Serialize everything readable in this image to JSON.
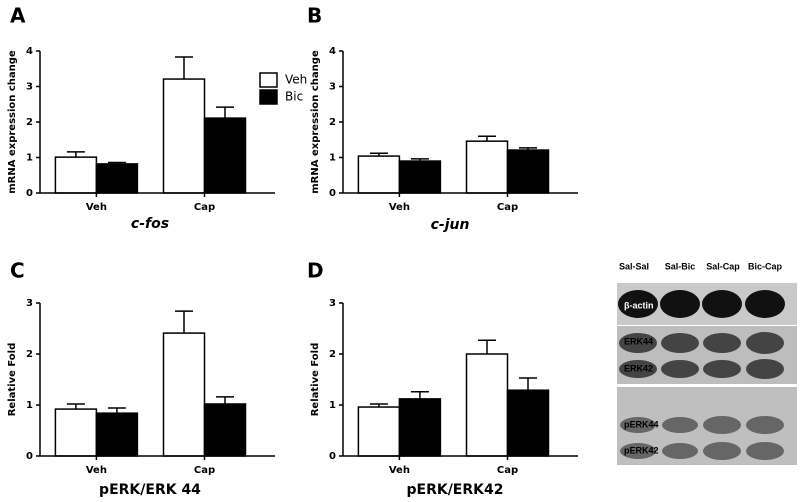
{
  "chart_data": [
    {
      "type": "bar",
      "panel": "A",
      "title": "c-fos",
      "y_label": "mRNA expression change",
      "categories": [
        "Veh",
        "Cap"
      ],
      "series": [
        {
          "name": "Veh",
          "color": "#ffffff",
          "values": [
            1.01,
            3.21
          ],
          "errors": [
            0.15,
            0.62
          ]
        },
        {
          "name": "Bic",
          "color": "#000000",
          "values": [
            0.82,
            2.11
          ],
          "errors": [
            0.04,
            0.31
          ]
        }
      ],
      "ylim": [
        0,
        4
      ],
      "yticks": [
        0,
        1,
        2,
        3,
        4
      ],
      "legend": "right"
    },
    {
      "type": "bar",
      "panel": "B",
      "title": "c-jun",
      "y_label": "mRNA expression change",
      "categories": [
        "Veh",
        "Cap"
      ],
      "series": [
        {
          "color": "#ffffff",
          "values": [
            1.04,
            1.46
          ],
          "errors": [
            0.08,
            0.14
          ]
        },
        {
          "color": "#000000",
          "values": [
            0.9,
            1.21
          ],
          "errors": [
            0.06,
            0.06
          ]
        }
      ],
      "ylim": [
        0,
        4
      ],
      "yticks": [
        0,
        1,
        2,
        3,
        4
      ]
    },
    {
      "type": "bar",
      "panel": "C",
      "title": "pERK/ERK 44",
      "y_label": "Relative Fold",
      "categories": [
        "Veh",
        "Cap"
      ],
      "series": [
        {
          "color": "#ffffff",
          "values": [
            0.92,
            2.41
          ],
          "errors": [
            0.1,
            0.43
          ]
        },
        {
          "color": "#000000",
          "values": [
            0.84,
            1.02
          ],
          "errors": [
            0.1,
            0.14
          ]
        }
      ],
      "ylim": [
        0,
        3
      ],
      "yticks": [
        0,
        1,
        2,
        3
      ]
    },
    {
      "type": "bar",
      "panel": "D",
      "title": "pERK/ERK42",
      "y_label": "Relative Fold",
      "categories": [
        "Veh",
        "Cap"
      ],
      "series": [
        {
          "color": "#ffffff",
          "values": [
            0.96,
            2.0
          ],
          "errors": [
            0.06,
            0.27
          ]
        },
        {
          "color": "#000000",
          "values": [
            1.12,
            1.29
          ],
          "errors": [
            0.14,
            0.24
          ]
        }
      ],
      "ylim": [
        0,
        3
      ],
      "yticks": [
        0,
        1,
        2,
        3
      ]
    }
  ],
  "blot": {
    "columns": [
      "Sal-Sal",
      "Sal-Bic",
      "Sal-Cap",
      "Bic-Cap"
    ],
    "rows": [
      "β-actin",
      "ERK44",
      "ERK42",
      "pERK44",
      "pERK42"
    ]
  }
}
